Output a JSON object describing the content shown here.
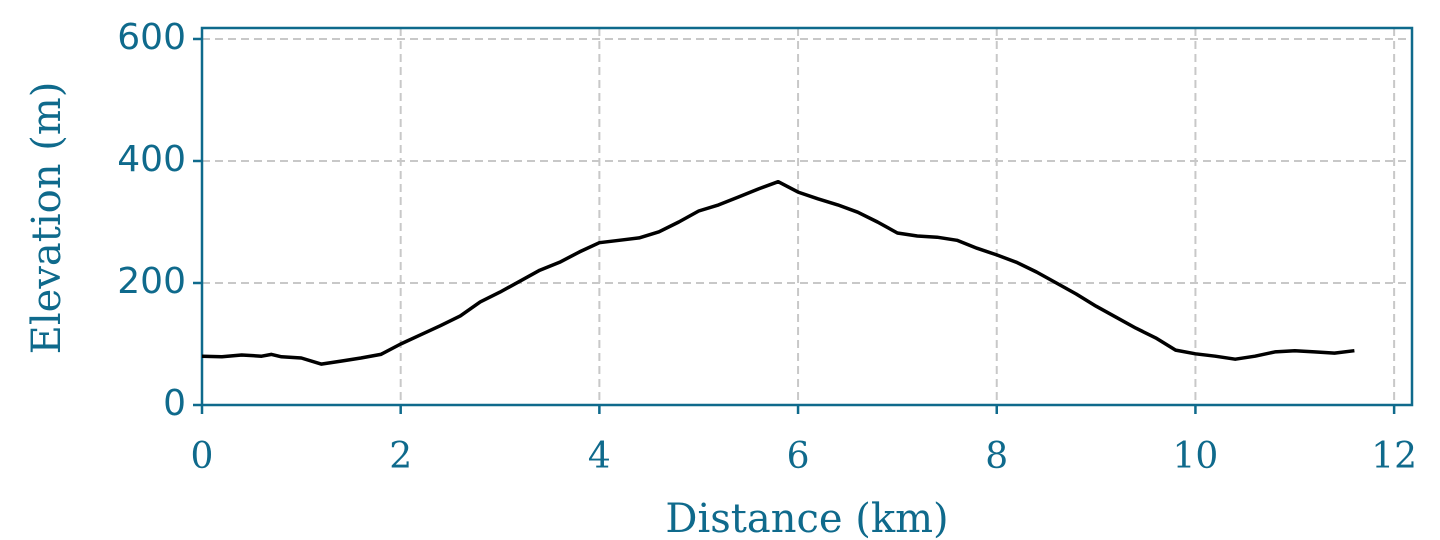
{
  "chart_data": {
    "type": "line",
    "x_label": "Distance (km)",
    "y_label": "Elevation (m)",
    "x": [
      0,
      0.2,
      0.4,
      0.6,
      0.7,
      0.8,
      1.0,
      1.2,
      1.4,
      1.6,
      1.8,
      2.0,
      2.2,
      2.4,
      2.6,
      2.8,
      3.0,
      3.2,
      3.4,
      3.6,
      3.8,
      4.0,
      4.2,
      4.4,
      4.6,
      4.8,
      5.0,
      5.2,
      5.4,
      5.6,
      5.8,
      6.0,
      6.2,
      6.4,
      6.6,
      6.8,
      7.0,
      7.2,
      7.4,
      7.6,
      7.8,
      8.0,
      8.2,
      8.4,
      8.6,
      8.8,
      9.0,
      9.2,
      9.4,
      9.6,
      9.8,
      10.0,
      10.2,
      10.4,
      10.6,
      10.8,
      11.0,
      11.2,
      11.4,
      11.6
    ],
    "values": [
      80,
      79,
      82,
      80,
      83,
      79,
      77,
      67,
      72,
      77,
      83,
      100,
      115,
      130,
      146,
      169,
      185,
      203,
      221,
      234,
      251,
      266,
      270,
      274,
      284,
      300,
      318,
      328,
      341,
      354,
      366,
      349,
      338,
      328,
      316,
      300,
      282,
      277,
      275,
      270,
      257,
      246,
      234,
      218,
      200,
      182,
      162,
      144,
      126,
      110,
      90,
      84,
      80,
      75,
      80,
      87,
      89,
      87,
      85,
      89
    ],
    "color": "#000000",
    "axis_color": "#0f6a8c",
    "xlim": [
      0,
      12.18
    ],
    "xticks": [
      0,
      2,
      4,
      6,
      8,
      10,
      12
    ],
    "ylim": [
      0,
      618
    ],
    "yticks": [
      0,
      200,
      400,
      600
    ],
    "grid": true
  }
}
